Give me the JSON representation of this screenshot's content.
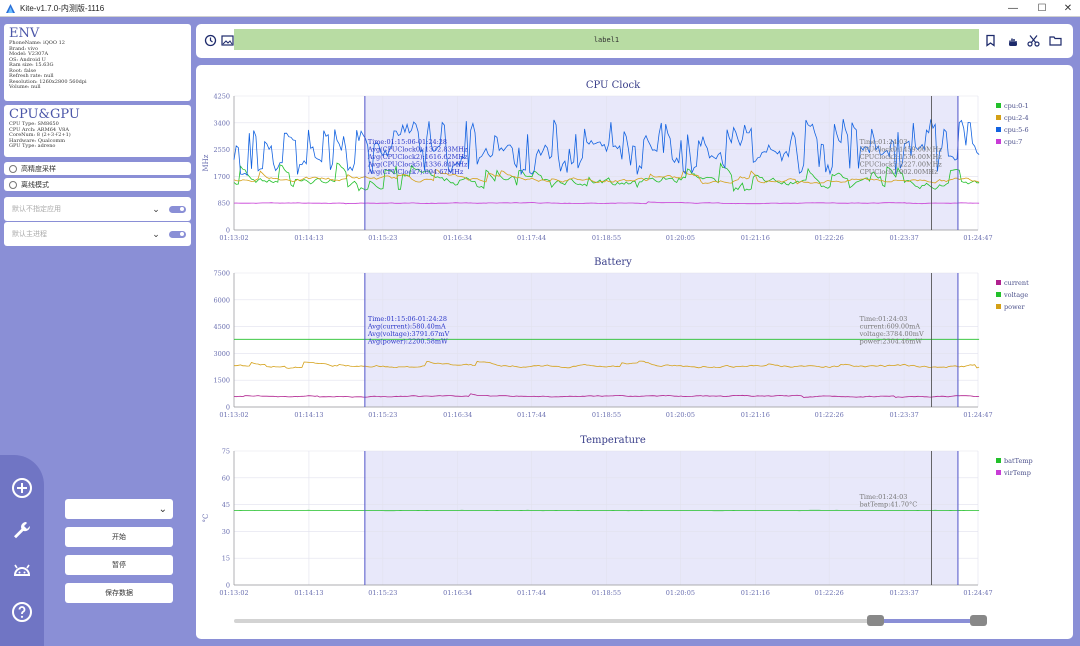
{
  "window": {
    "title": "Kite-v1.7.0-内测版-1116",
    "minimize": "—",
    "maximize": "☐",
    "close": "✕"
  },
  "env": {
    "title": "ENV",
    "lines": [
      "PhoneName: iQOO 12",
      "Brand: vivo",
      "Model: V2307A",
      "OS: Android U",
      "Ram size: 15.63G",
      "Root: false",
      "Refresh rate: null",
      "Resolution: 1260x2800 560dpi",
      "Volume: null"
    ]
  },
  "cpugpu": {
    "title": "CPU&GPU",
    "lines": [
      "CPU Type: SM8650",
      "CPU Arch: ARM64_V8A",
      "CoreNum: 8 (2+3+2+1)",
      "Hardware: Qualcomm",
      "GPU Type: adreno"
    ]
  },
  "options": {
    "high_precision": "高精度采样",
    "offline_mode": "离线模式"
  },
  "selects": {
    "app_placeholder": "默认不指定应用",
    "process_placeholder": "默认主进程"
  },
  "controls": {
    "dropdown_value": "",
    "start": "开始",
    "pause": "暂停",
    "save": "保存数据"
  },
  "toolbar": {
    "label": "label1"
  },
  "colors": {
    "accent": "#8a8fd6",
    "sel_fill": "#e8e8fa",
    "sel_line": "#4f52c9",
    "green": "#22c02a",
    "orange": "#d4a017",
    "blue": "#1262e0",
    "magenta": "#c83cd6",
    "current": "#b0208e"
  },
  "chart_data": [
    {
      "type": "line",
      "title": "CPU Clock",
      "ylabel": "MHz",
      "yticks": [
        "0",
        "850",
        "1700",
        "2550",
        "3400",
        "4250"
      ],
      "ylim": [
        0,
        4250
      ],
      "xticks": [
        "01:13:02",
        "01:14:13",
        "01:15:23",
        "01:16:34",
        "01:17:44",
        "01:18:55",
        "01:20:05",
        "01:21:16",
        "01:22:26",
        "01:23:37",
        "01:24:47"
      ],
      "selection": {
        "start": "01:15:06",
        "end": "01:24:28",
        "cursor": "01:24:03"
      },
      "series": [
        {
          "name": "cpu:0-1",
          "color": "#22c02a",
          "base": 1500,
          "noise": 450,
          "spikes": 0.15
        },
        {
          "name": "cpu:2-4",
          "color": "#d4a017",
          "base": 1600,
          "noise": 250,
          "spikes": 0.05
        },
        {
          "name": "cpu:5-6",
          "color": "#1262e0",
          "base": 2300,
          "noise": 900,
          "spikes": 0.5
        },
        {
          "name": "cpu:7",
          "color": "#c83cd6",
          "base": 850,
          "noise": 40,
          "spikes": 0.02
        }
      ],
      "avg_box": [
        "Time:01:15:06-01:24:28",
        "Avg(CPUClock0):1372.83MHz",
        "Avg(CPUClock2):1616.62MHz",
        "Avg(CPUClock5):1336.84MHz",
        "Avg(CPUClock7):894.67MHz"
      ],
      "cursor_box": [
        "Time:01:24:03",
        "CPUClock0:1459.00MHz",
        "CPUClock2:1536.00MHz",
        "CPUClock5:2227.00MHz",
        "CPUClock7:902.00MHz"
      ]
    },
    {
      "type": "line",
      "title": "Battery",
      "ylabel": "",
      "yticks": [
        "0",
        "1500",
        "3000",
        "4500",
        "6000",
        "7500"
      ],
      "ylim": [
        0,
        7500
      ],
      "xticks": [
        "01:13:02",
        "01:14:13",
        "01:15:23",
        "01:16:34",
        "01:17:44",
        "01:18:55",
        "01:20:05",
        "01:21:16",
        "01:22:26",
        "01:23:37",
        "01:24:47"
      ],
      "selection": {
        "start": "01:15:06",
        "end": "01:24:28",
        "cursor": "01:24:03"
      },
      "series": [
        {
          "name": "current",
          "color": "#b0208e",
          "base": 600,
          "noise": 120,
          "spikes": 0.02
        },
        {
          "name": "voltage",
          "color": "#22c02a",
          "base": 3790,
          "noise": 5,
          "spikes": 0
        },
        {
          "name": "power",
          "color": "#d4a017",
          "base": 2300,
          "noise": 250,
          "spikes": 0.05
        }
      ],
      "avg_box": [
        "Time:01:15:06-01:24:28",
        "Avg(current):580.40mA",
        "Avg(voltage):3791.67mV",
        "Avg(power):2200.58mW"
      ],
      "cursor_box": [
        "Time:01:24:03",
        "current:609.00mA",
        "voltage:3784.00mV",
        "power:2304.46mW"
      ]
    },
    {
      "type": "line",
      "title": "Temperature",
      "ylabel": "°C",
      "yticks": [
        "0",
        "15",
        "30",
        "45",
        "60",
        "75"
      ],
      "ylim": [
        0,
        75
      ],
      "xticks": [
        "01:13:02",
        "01:14:13",
        "01:15:23",
        "01:16:34",
        "01:17:44",
        "01:18:55",
        "01:20:05",
        "01:21:16",
        "01:22:26",
        "01:23:37",
        "01:24:47"
      ],
      "selection": {
        "start": "01:15:06",
        "end": "01:24:28",
        "cursor": "01:24:03"
      },
      "series": [
        {
          "name": "batTemp",
          "color": "#22c02a",
          "base": 41.7,
          "noise": 0.3,
          "spikes": 0
        },
        {
          "name": "virTemp",
          "color": "#c83cd6",
          "base": null,
          "noise": 0,
          "spikes": 0
        }
      ],
      "avg_box": [],
      "cursor_box": [
        "Time:01:24:03",
        "batTemp:41.70°C"
      ]
    }
  ]
}
